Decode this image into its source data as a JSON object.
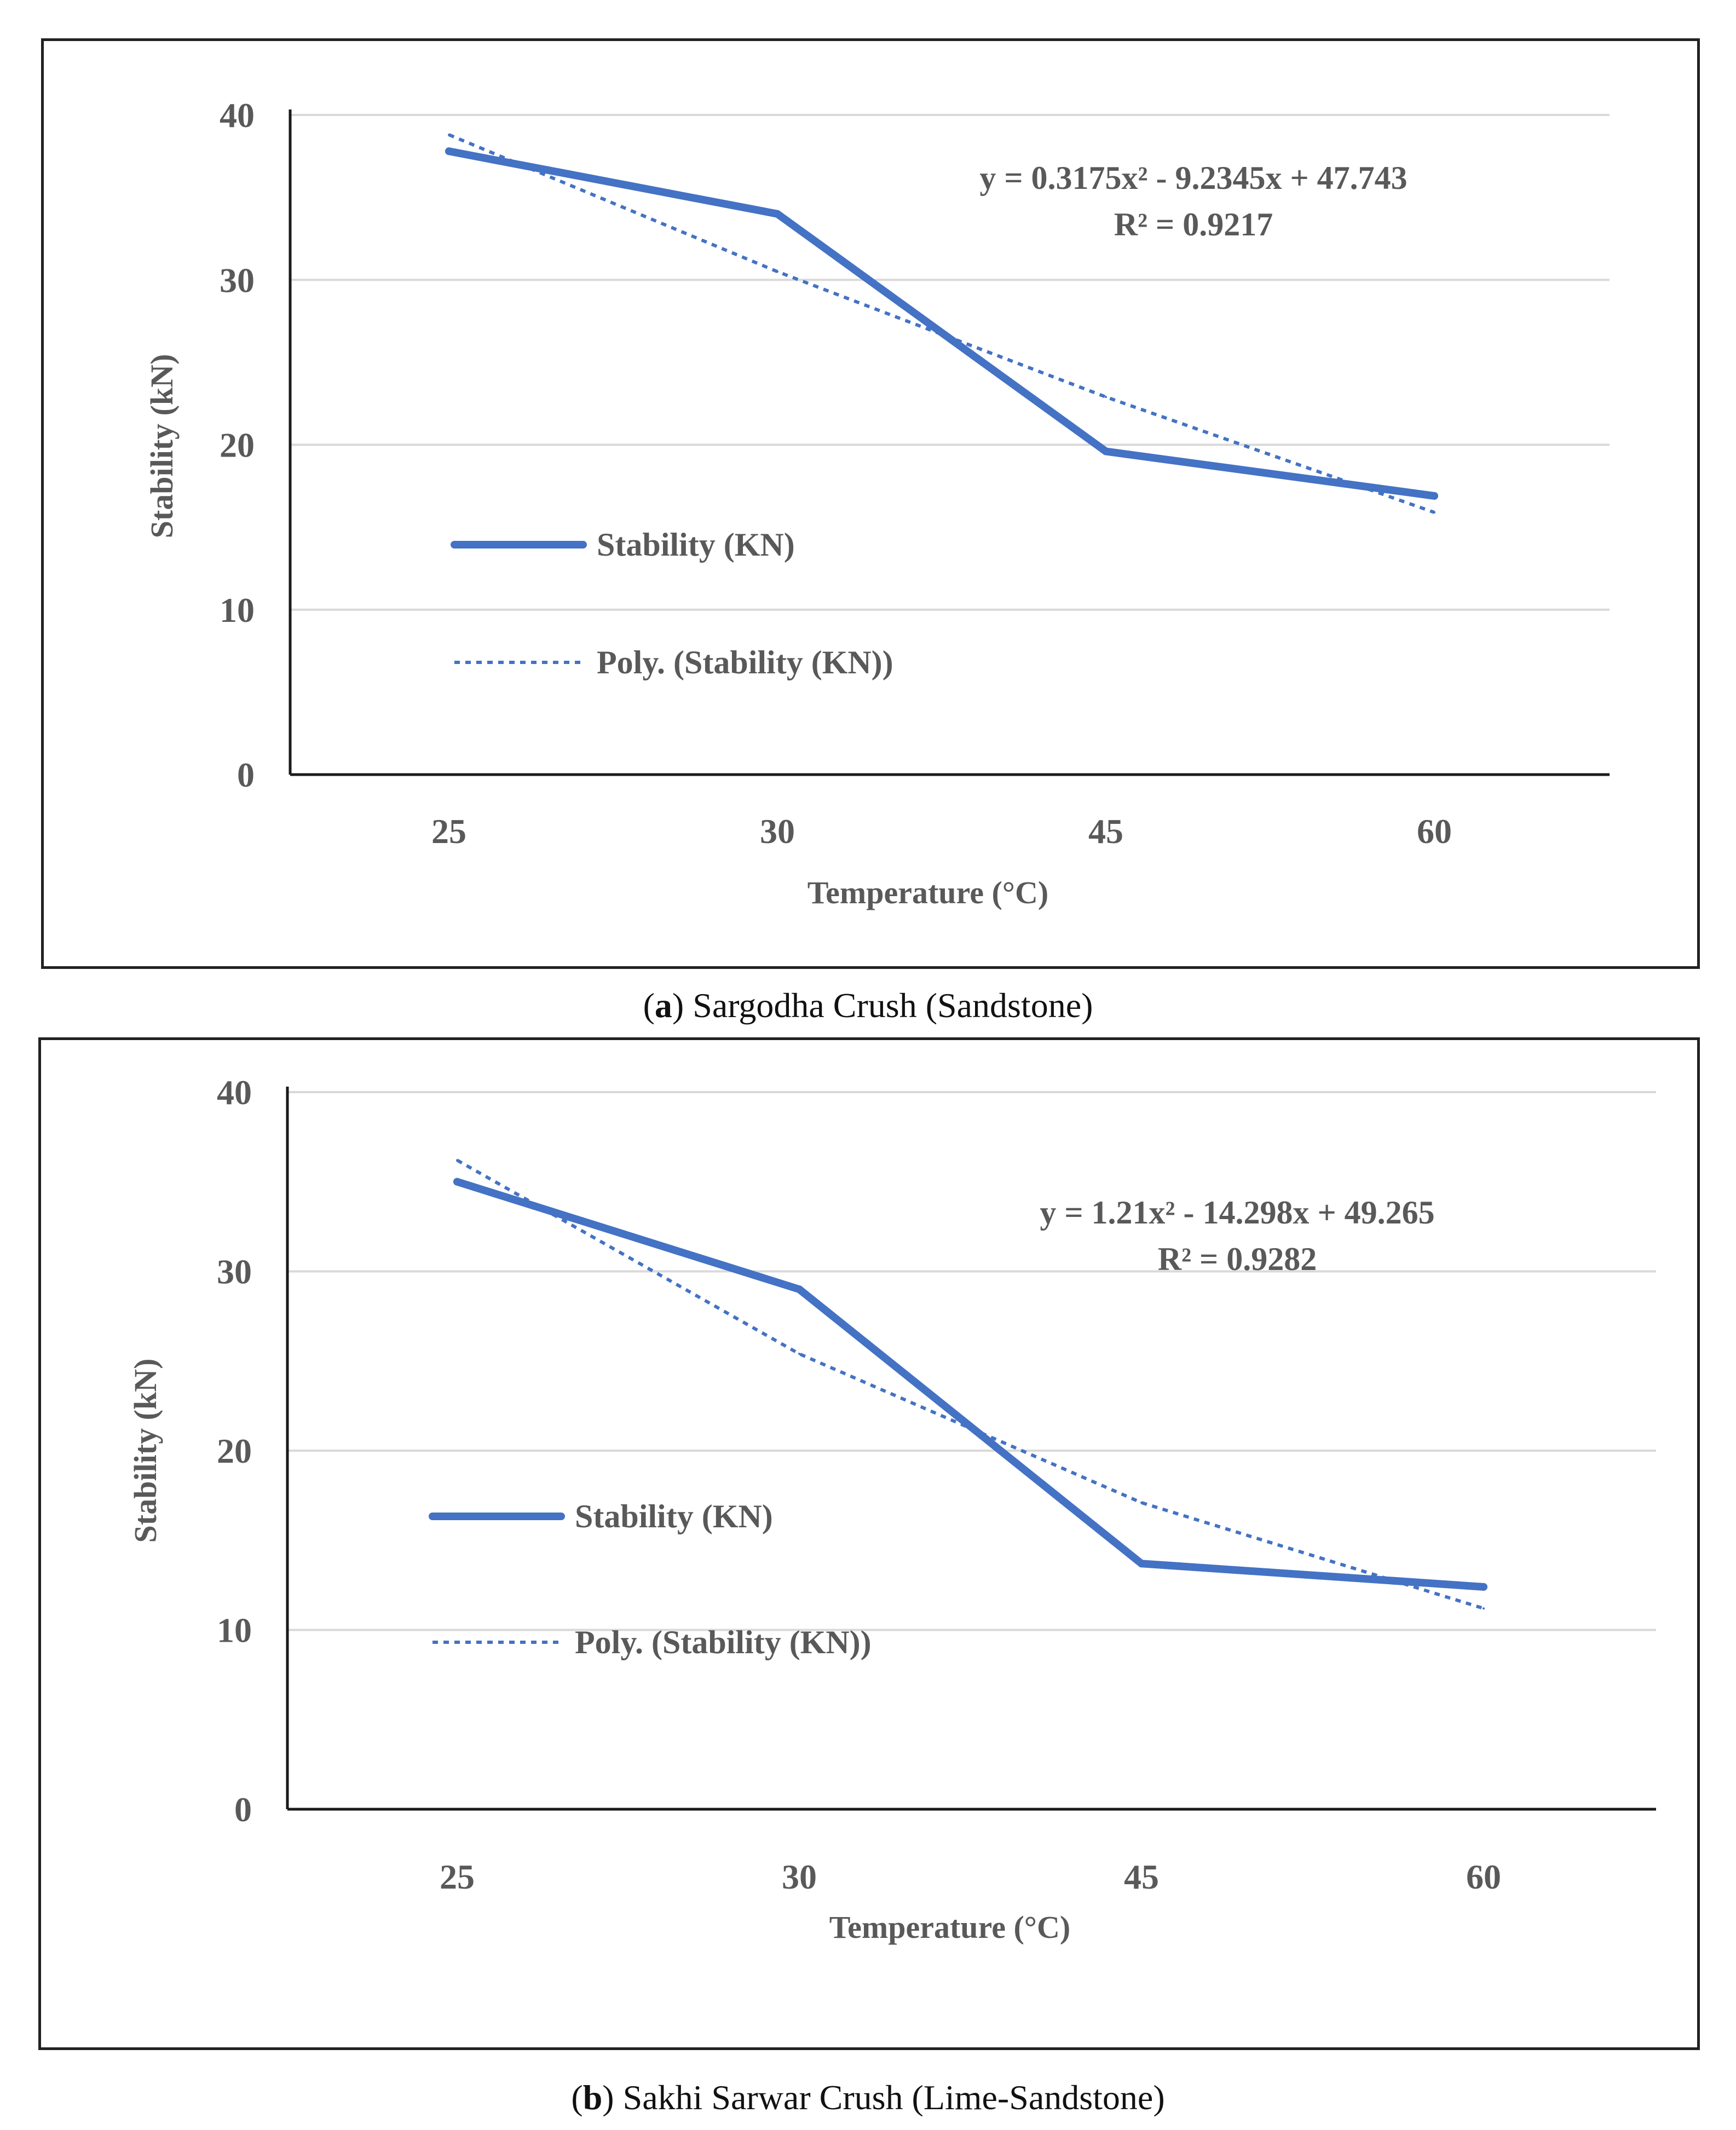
{
  "chart_data": [
    {
      "type": "line",
      "caption_letter": "a",
      "caption_text": "Sargodha Crush (Sandstone)",
      "categories": [
        "25",
        "30",
        "45",
        "60"
      ],
      "series": [
        {
          "name": "Stability (KN)",
          "style": "solid",
          "color": "#4472C4",
          "values": [
            37.8,
            34.0,
            19.6,
            16.9
          ]
        },
        {
          "name": "Poly. (Stability (KN))",
          "style": "dotted",
          "color": "#4472C4",
          "values": [
            38.8,
            30.5,
            22.9,
            15.9
          ]
        }
      ],
      "equation": "y = 0.3175x² - 9.2345x + 47.743",
      "r_squared": "R² = 0.9217",
      "xlabel": "Temperature (°C)",
      "ylabel": "Stability (kN)",
      "ylim": [
        0,
        40
      ],
      "yticks": [
        "0",
        "10",
        "20",
        "30",
        "40"
      ],
      "grid": true,
      "legend_position": "left"
    },
    {
      "type": "line",
      "caption_letter": "b",
      "caption_text": "Sakhi Sarwar Crush (Lime-Sandstone)",
      "categories": [
        "25",
        "30",
        "45",
        "60"
      ],
      "series": [
        {
          "name": "Stability (KN)",
          "style": "solid",
          "color": "#4472C4",
          "values": [
            35.0,
            29.0,
            13.7,
            12.4
          ]
        },
        {
          "name": "Poly. (Stability (KN))",
          "style": "dotted",
          "color": "#4472C4",
          "values": [
            36.2,
            25.4,
            17.1,
            11.2
          ]
        }
      ],
      "equation": "y = 1.21x² - 14.298x + 49.265",
      "r_squared": "R² = 0.9282",
      "xlabel": "Temperature (°C)",
      "ylabel": "Stability (kN)",
      "ylim": [
        0,
        40
      ],
      "yticks": [
        "0",
        "10",
        "20",
        "30",
        "40"
      ],
      "grid": true,
      "legend_position": "left"
    }
  ]
}
